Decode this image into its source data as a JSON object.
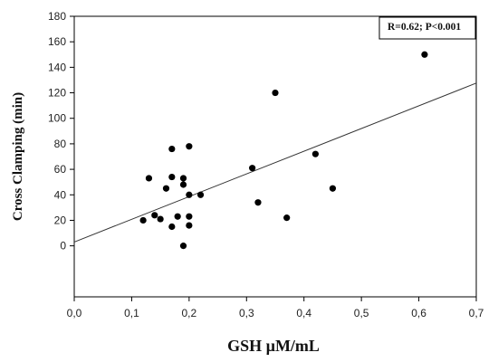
{
  "chart_data": {
    "type": "scatter",
    "xlabel": "GSH µM/mL",
    "ylabel": "Cross Clamping (min)",
    "xlim": [
      0,
      0.7
    ],
    "ylim": [
      -40,
      180
    ],
    "x_ticks": [
      "0,0",
      "0,1",
      "0,2",
      "0,3",
      "0,4",
      "0,5",
      "0,6",
      "0,7"
    ],
    "y_ticks": [
      "0",
      "20",
      "40",
      "60",
      "80",
      "100",
      "120",
      "140",
      "160",
      "180"
    ],
    "annotation": "R=0.62; P<0.001",
    "series": [
      {
        "points": [
          {
            "x": 0.12,
            "y": 20
          },
          {
            "x": 0.13,
            "y": 53
          },
          {
            "x": 0.14,
            "y": 24
          },
          {
            "x": 0.15,
            "y": 21
          },
          {
            "x": 0.16,
            "y": 45
          },
          {
            "x": 0.17,
            "y": 76
          },
          {
            "x": 0.17,
            "y": 54
          },
          {
            "x": 0.17,
            "y": 15
          },
          {
            "x": 0.18,
            "y": 23
          },
          {
            "x": 0.19,
            "y": 53
          },
          {
            "x": 0.19,
            "y": 48
          },
          {
            "x": 0.19,
            "y": 0
          },
          {
            "x": 0.2,
            "y": 78
          },
          {
            "x": 0.2,
            "y": 40
          },
          {
            "x": 0.2,
            "y": 23
          },
          {
            "x": 0.2,
            "y": 16
          },
          {
            "x": 0.22,
            "y": 40
          },
          {
            "x": 0.31,
            "y": 61
          },
          {
            "x": 0.32,
            "y": 34
          },
          {
            "x": 0.35,
            "y": 120
          },
          {
            "x": 0.37,
            "y": 22
          },
          {
            "x": 0.42,
            "y": 72
          },
          {
            "x": 0.45,
            "y": 45
          },
          {
            "x": 0.61,
            "y": 150
          }
        ]
      }
    ],
    "trendline": {
      "type": "linear",
      "intercept": 3,
      "slope": 178
    },
    "grid": false,
    "colors": {
      "points": "#000000",
      "line": "#333333",
      "axes": "#000000",
      "annotation_border": "#000000"
    }
  }
}
